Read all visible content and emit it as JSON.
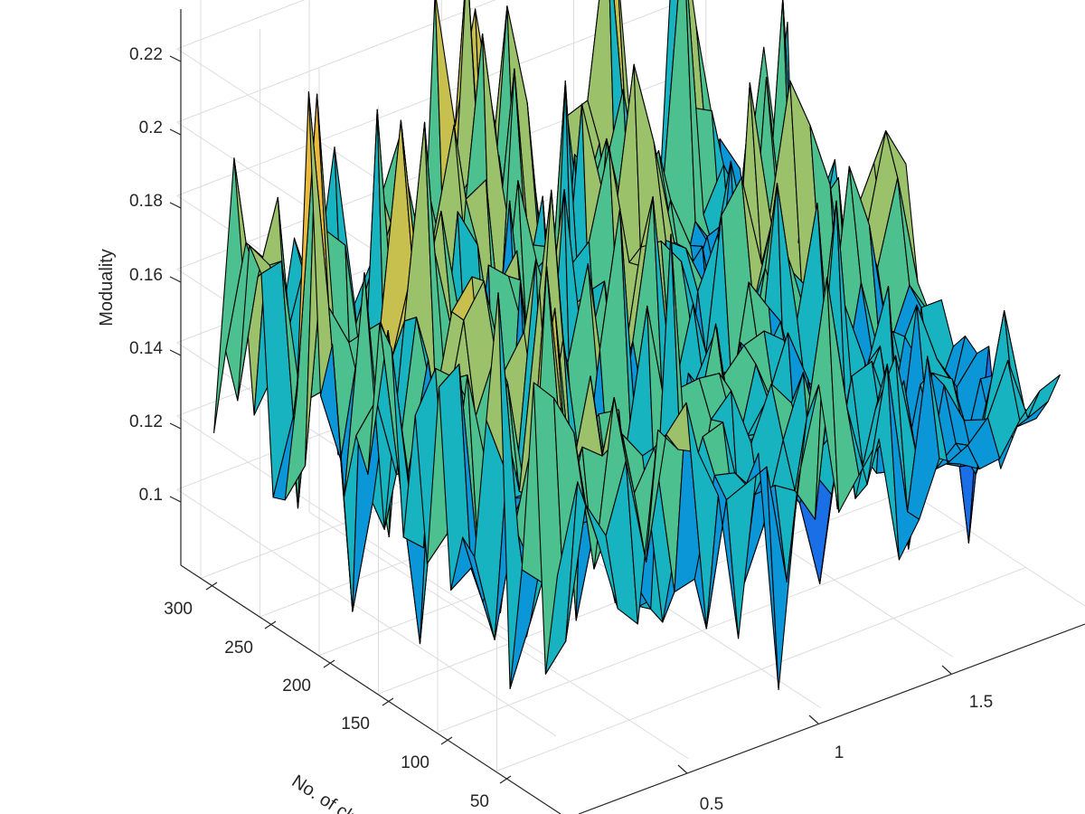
{
  "chart_data": {
    "type": "surface",
    "title": "",
    "xlabel": "",
    "ylabel": "No. of clusters",
    "zlabel": "Moduality",
    "x_ticks": [
      "0.5",
      "1",
      "1.5"
    ],
    "y_ticks": [
      "50",
      "100",
      "150",
      "200",
      "250",
      "300"
    ],
    "z_ticks": [
      "0.1",
      "0.12",
      "0.14",
      "0.16",
      "0.18",
      "0.2",
      "0.22"
    ],
    "xlim": [
      0,
      2
    ],
    "ylim": [
      0,
      320
    ],
    "zlim": [
      0.08,
      0.24
    ],
    "grid": true,
    "colormap": [
      "#3e26a8",
      "#1a6ee6",
      "#0b96d8",
      "#17b3c0",
      "#4cc08e",
      "#9bc26a",
      "#c8c04e",
      "#eaba3f",
      "#f7d62d",
      "#f9f90e"
    ],
    "surface_summary": {
      "x_range": [
        0,
        2
      ],
      "y_range": [
        1,
        320
      ],
      "z_min_approx": 0.085,
      "z_max_approx": 0.24,
      "description_values": "Moduality fluctuates between ~0.09 and ~0.23 across the grid; front edge (large x, low clusters) is a flat ridge near 0.10-0.12"
    }
  }
}
